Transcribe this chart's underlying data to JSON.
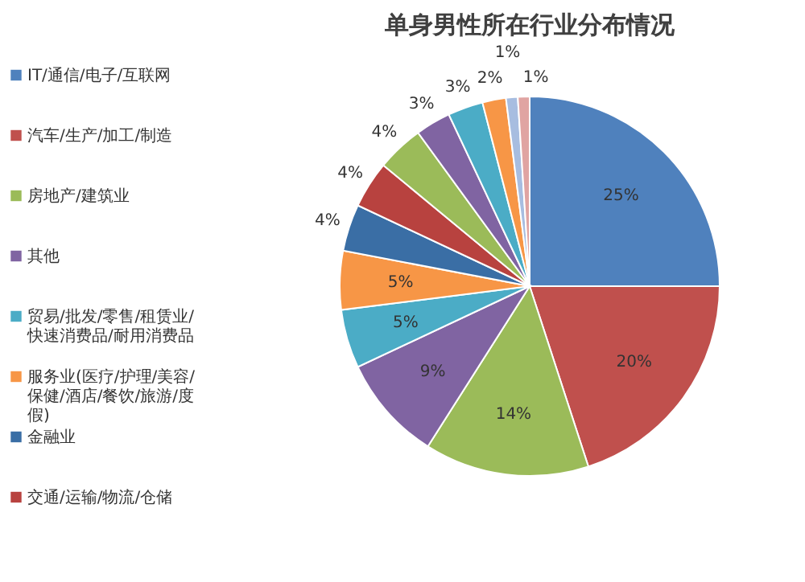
{
  "chart_data": {
    "type": "pie",
    "title": "单身男性所在行业分布情况",
    "categories": [
      "IT/通信/电子/互联网",
      "汽车/生产/加工/制造",
      "房地产/建筑业",
      "其他",
      "贸易/批发/零售/租赁业/快速消费品/耐用消费品",
      "服务业(医疗/护理/美容/保健/酒店/餐饮/旅游/度假)",
      "金融业",
      "交通/运输/物流/仓储",
      null,
      null,
      null,
      null,
      null,
      null
    ],
    "values": [
      25,
      20,
      14,
      9,
      5,
      5,
      4,
      4,
      4,
      3,
      3,
      2,
      1,
      1
    ],
    "value_labels": [
      "25%",
      "20%",
      "14%",
      "9%",
      "5%",
      "5%",
      "4%",
      "4%",
      "4%",
      "3%",
      "3%",
      "2%",
      "1%",
      "1%"
    ],
    "colors": [
      "#4f81bd",
      "#c0504d",
      "#9bbb59",
      "#8064a2",
      "#4bacc6",
      "#f79646",
      "#3a6ea5",
      "#b8423f",
      "#9bbb59",
      "#8064a2",
      "#4bacc6",
      "#f79646",
      "#a7bde0",
      "#e0a4a2"
    ],
    "legend": "left"
  }
}
